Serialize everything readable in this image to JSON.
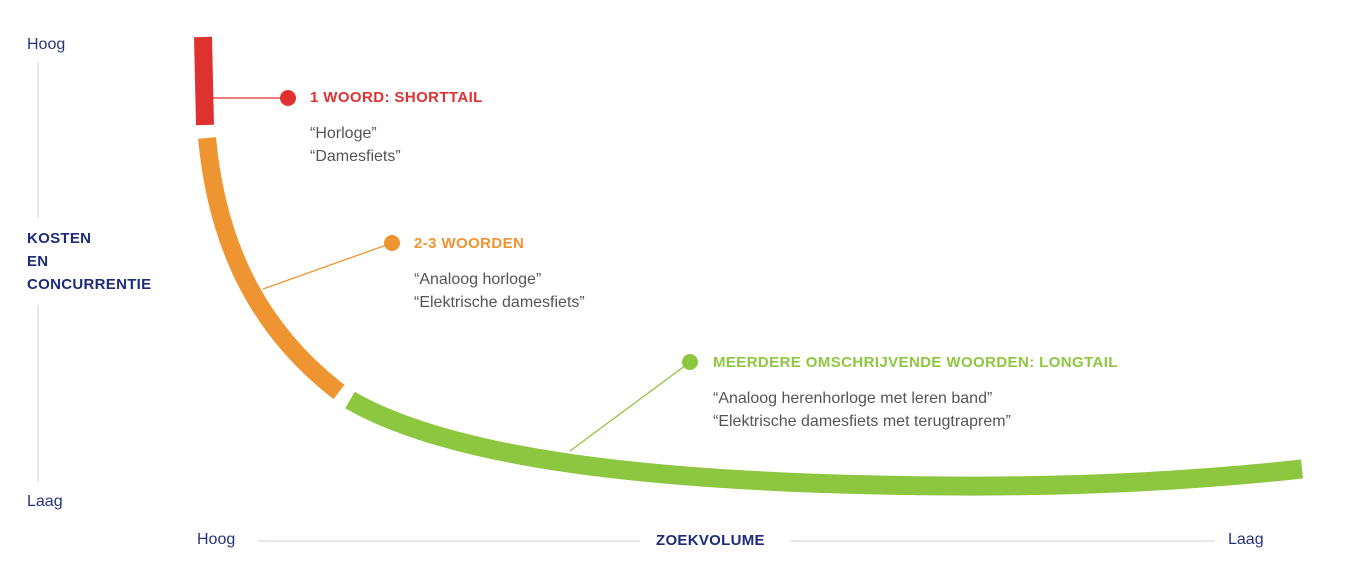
{
  "colors": {
    "navy": "#1f2d7a",
    "red": "#e03131",
    "orange": "#ee9431",
    "green": "#8dc63f",
    "text": "#555555",
    "axis_line": "#dde0ec"
  },
  "y_axis": {
    "top": "Hoog",
    "label_lines": [
      "KOSTEN",
      "EN",
      "CONCURRENTIE"
    ],
    "bottom": "Laag"
  },
  "x_axis": {
    "left": "Hoog",
    "label": "ZOEKVOLUME",
    "right": "Laag"
  },
  "segments": [
    {
      "title": "1 WOORD: SHORTTAIL",
      "examples": [
        "“Horloge”",
        "“Damesfiets”"
      ]
    },
    {
      "title": "2-3 WOORDEN",
      "examples": [
        "“Analoog horloge”",
        "“Elektrische damesfiets”"
      ]
    },
    {
      "title": "MEERDERE OMSCHRIJVENDE WOORDEN: LONGTAIL",
      "examples": [
        "“Analoog herenhorloge met leren band”",
        "“Elektrische damesfiets met terugtraprem”"
      ]
    }
  ]
}
